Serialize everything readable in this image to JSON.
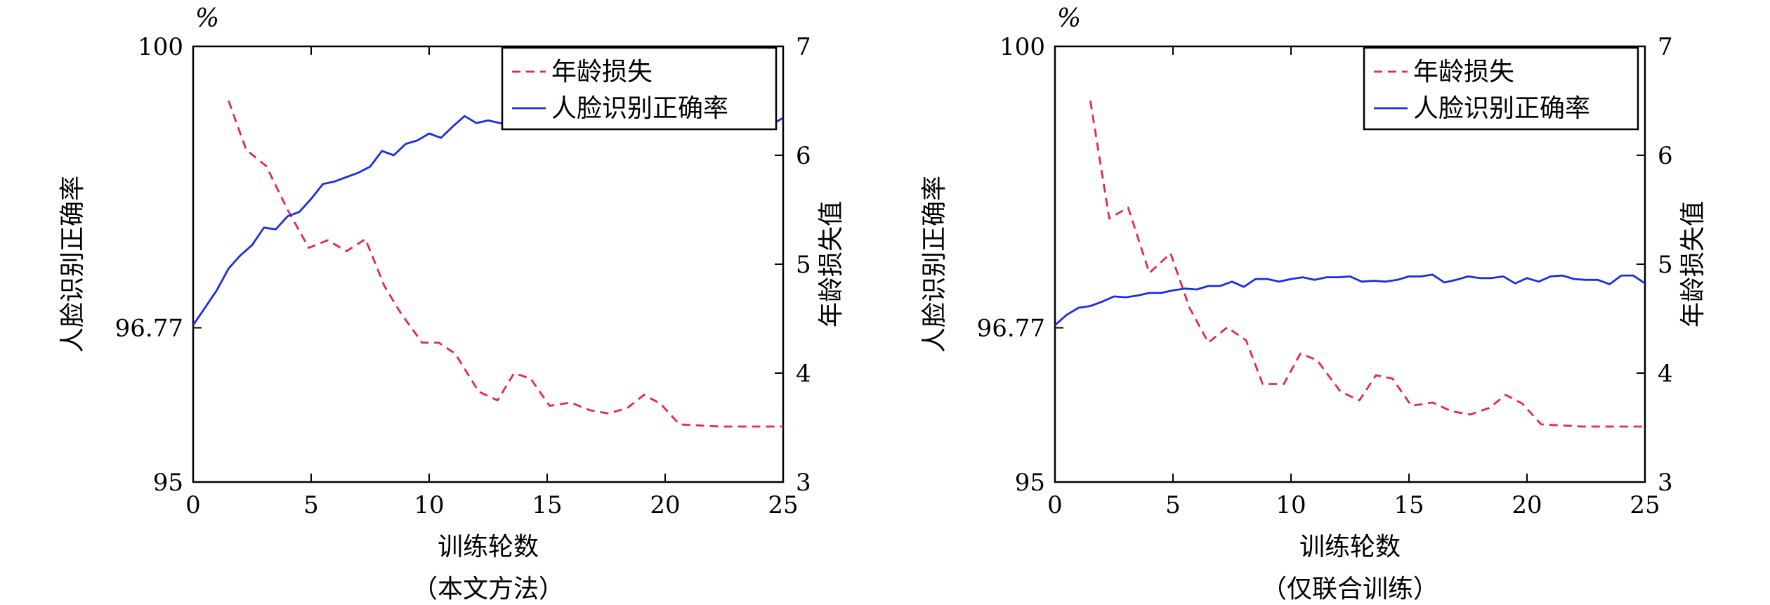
{
  "chart_data": [
    {
      "type": "line",
      "caption": "（本文方法）",
      "unit_label": "%",
      "xlabel": "训练轮数",
      "ylabel_left": "人脸识别正确率",
      "ylabel_right": "年龄损失值",
      "xlim": [
        0,
        25
      ],
      "ylim_left": [
        95,
        100
      ],
      "ylim_right": [
        3,
        7
      ],
      "x_ticks": [
        "0",
        "5",
        "10",
        "15",
        "20",
        "25"
      ],
      "y_left_ticks": [
        "95",
        "96.77",
        "100"
      ],
      "y_right_ticks": [
        "3",
        "4",
        "5",
        "6",
        "7"
      ],
      "legend_position": "top-right",
      "series": [
        {
          "name": "年龄损失",
          "axis": "right",
          "color": "#e8254e",
          "style": "dashed",
          "x": [
            1.5,
            2.25,
            3.1,
            4.0,
            4.9,
            5.7,
            6.5,
            7.3,
            8.1,
            8.8,
            9.7,
            10.4,
            11.1,
            12.1,
            12.9,
            13.6,
            14.3,
            15.1,
            16.0,
            16.8,
            17.6,
            18.4,
            19.1,
            19.8,
            20.6,
            21.4,
            22.3,
            23.2,
            24.1,
            25.0
          ],
          "y": [
            6.5,
            6.05,
            5.9,
            5.5,
            5.15,
            5.22,
            5.12,
            5.23,
            4.8,
            4.55,
            4.28,
            4.28,
            4.18,
            3.83,
            3.75,
            4.0,
            3.95,
            3.7,
            3.73,
            3.66,
            3.63,
            3.68,
            3.8,
            3.72,
            3.53,
            3.52,
            3.51,
            3.51,
            3.51,
            3.51
          ]
        },
        {
          "name": "人脸识别正确率",
          "axis": "left",
          "color": "#1b2ee0",
          "style": "solid",
          "x": [
            0,
            0.5,
            1.0,
            1.5,
            2.0,
            2.5,
            3.0,
            3.5,
            4.0,
            4.5,
            5.0,
            5.5,
            6.0,
            6.5,
            7.0,
            7.5,
            8.0,
            8.5,
            9.0,
            9.5,
            10.0,
            10.5,
            11.0,
            11.5,
            12.0,
            12.5,
            13.0,
            13.5,
            14.0,
            14.5,
            15.0,
            15.5,
            16.0,
            16.5,
            17.0,
            17.5,
            18.0,
            18.5,
            19.0,
            19.5,
            20.0,
            20.5,
            21.0,
            21.5,
            22.0,
            22.5,
            23.0,
            23.5,
            24.0,
            24.5,
            25.0
          ],
          "y": [
            96.8,
            97.0,
            97.2,
            97.45,
            97.6,
            97.72,
            97.92,
            97.9,
            98.05,
            98.1,
            98.25,
            98.42,
            98.45,
            98.5,
            98.55,
            98.62,
            98.8,
            98.75,
            98.88,
            98.92,
            99.0,
            98.95,
            99.08,
            99.2,
            99.12,
            99.15,
            99.12,
            99.1,
            99.15,
            99.08,
            99.2,
            99.18,
            99.1,
            99.13,
            99.12,
            99.25,
            99.23,
            99.18,
            99.22,
            99.2,
            99.12,
            99.15,
            99.1,
            99.2,
            99.15,
            99.18,
            99.12,
            99.2,
            99.1,
            99.1,
            99.18
          ]
        }
      ]
    },
    {
      "type": "line",
      "caption": "（仅联合训练）",
      "unit_label": "%",
      "xlabel": "训练轮数",
      "ylabel_left": "人脸识别正确率",
      "ylabel_right": "年龄损失值",
      "xlim": [
        0,
        25
      ],
      "ylim_left": [
        95,
        100
      ],
      "ylim_right": [
        3,
        7
      ],
      "x_ticks": [
        "0",
        "5",
        "10",
        "15",
        "20",
        "25"
      ],
      "y_left_ticks": [
        "95",
        "96.77",
        "100"
      ],
      "y_right_ticks": [
        "3",
        "4",
        "5",
        "6",
        "7"
      ],
      "legend_position": "top-right",
      "series": [
        {
          "name": "年龄损失",
          "axis": "right",
          "color": "#e8254e",
          "style": "dashed",
          "x": [
            1.5,
            2.3,
            3.1,
            4.0,
            4.9,
            5.7,
            6.5,
            7.3,
            8.1,
            8.8,
            9.7,
            10.4,
            11.1,
            12.1,
            12.9,
            13.6,
            14.3,
            15.1,
            16.0,
            16.8,
            17.6,
            18.4,
            19.1,
            19.8,
            20.6,
            21.4,
            22.3,
            23.2,
            24.1,
            25.0
          ],
          "y": [
            6.5,
            5.42,
            5.52,
            4.92,
            5.1,
            4.6,
            4.28,
            4.42,
            4.3,
            3.9,
            3.9,
            4.18,
            4.12,
            3.83,
            3.75,
            3.98,
            3.95,
            3.7,
            3.73,
            3.65,
            3.62,
            3.68,
            3.8,
            3.72,
            3.53,
            3.52,
            3.51,
            3.51,
            3.51,
            3.51
          ]
        },
        {
          "name": "人脸识别正确率",
          "axis": "left",
          "color": "#1b2ee0",
          "style": "solid",
          "x": [
            0,
            0.5,
            1.0,
            1.5,
            2.0,
            2.5,
            3.0,
            3.5,
            4.0,
            4.5,
            5.0,
            5.5,
            6.0,
            6.5,
            7.0,
            7.5,
            8.0,
            8.5,
            9.0,
            9.5,
            10.0,
            10.5,
            11.0,
            11.5,
            12.0,
            12.5,
            13.0,
            13.5,
            14.0,
            14.5,
            15.0,
            15.5,
            16.0,
            16.5,
            17.0,
            17.5,
            18.0,
            18.5,
            19.0,
            19.5,
            20.0,
            20.5,
            21.0,
            21.5,
            22.0,
            22.5,
            23.0,
            23.5,
            24.0,
            24.5,
            25.0
          ],
          "y": [
            96.8,
            96.92,
            97.0,
            97.02,
            97.07,
            97.13,
            97.12,
            97.14,
            97.17,
            97.17,
            97.2,
            97.22,
            97.21,
            97.25,
            97.25,
            97.3,
            97.24,
            97.33,
            97.33,
            97.3,
            97.33,
            97.35,
            97.32,
            97.35,
            97.35,
            97.36,
            97.3,
            97.31,
            97.3,
            97.32,
            97.36,
            97.36,
            97.38,
            97.29,
            97.32,
            97.36,
            97.34,
            97.34,
            97.36,
            97.28,
            97.34,
            97.3,
            97.36,
            97.37,
            97.33,
            97.32,
            97.32,
            97.27,
            97.37,
            97.37,
            97.28
          ]
        }
      ]
    }
  ]
}
